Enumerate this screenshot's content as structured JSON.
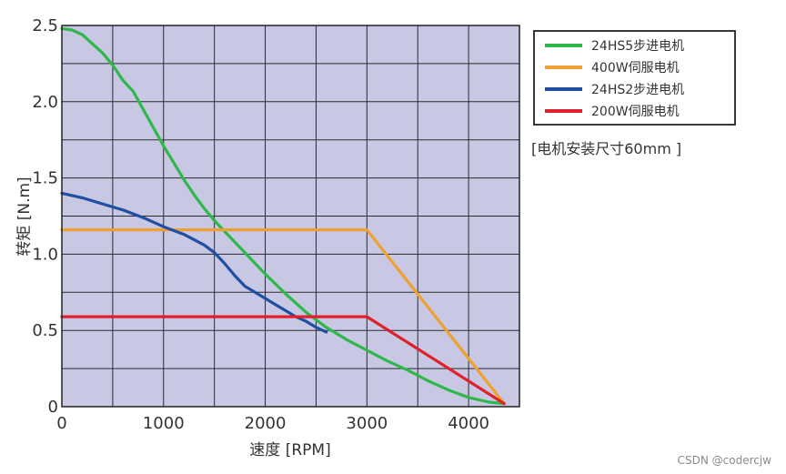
{
  "chart_data": {
    "type": "line",
    "xlabel": "速度 [RPM]",
    "ylabel": "转矩 [N.m]",
    "xlim": [
      0,
      4500
    ],
    "ylim": [
      0,
      2.5
    ],
    "x_ticks": [
      0,
      500,
      1000,
      1500,
      2000,
      2500,
      3000,
      3500,
      4000,
      4500
    ],
    "x_tick_labels": [
      "0",
      "",
      "1000",
      "",
      "2000",
      "",
      "3000",
      "",
      "4000",
      ""
    ],
    "y_ticks": [
      0,
      0.25,
      0.5,
      0.75,
      1.0,
      1.25,
      1.5,
      1.75,
      2.0,
      2.25,
      2.5
    ],
    "y_tick_labels": [
      "0",
      "",
      "0.5",
      "",
      "1.0",
      "",
      "1.5",
      "",
      "2.0",
      "",
      "2.5"
    ],
    "grid": true,
    "plot_background": "#c8c8e4",
    "legend_position": "top-right",
    "series": [
      {
        "name": "24HS5步进电机",
        "color": "#2fb84a",
        "points": [
          [
            0,
            2.48
          ],
          [
            100,
            2.47
          ],
          [
            200,
            2.44
          ],
          [
            300,
            2.38
          ],
          [
            400,
            2.32
          ],
          [
            500,
            2.24
          ],
          [
            600,
            2.14
          ],
          [
            700,
            2.07
          ],
          [
            800,
            1.95
          ],
          [
            900,
            1.83
          ],
          [
            1000,
            1.71
          ],
          [
            1100,
            1.6
          ],
          [
            1200,
            1.49
          ],
          [
            1300,
            1.39
          ],
          [
            1400,
            1.3
          ],
          [
            1500,
            1.22
          ],
          [
            1600,
            1.15
          ],
          [
            1700,
            1.08
          ],
          [
            1800,
            1.01
          ],
          [
            1900,
            0.94
          ],
          [
            2000,
            0.87
          ],
          [
            2200,
            0.74
          ],
          [
            2400,
            0.62
          ],
          [
            2600,
            0.52
          ],
          [
            2800,
            0.44
          ],
          [
            3000,
            0.37
          ],
          [
            3200,
            0.3
          ],
          [
            3400,
            0.24
          ],
          [
            3600,
            0.17
          ],
          [
            3800,
            0.11
          ],
          [
            4000,
            0.06
          ],
          [
            4200,
            0.03
          ],
          [
            4350,
            0.02
          ]
        ]
      },
      {
        "name": "400W伺服电机",
        "color": "#f0a030",
        "points": [
          [
            0,
            1.16
          ],
          [
            3000,
            1.16
          ],
          [
            4350,
            0.02
          ]
        ]
      },
      {
        "name": "24HS2步进电机",
        "color": "#1f4fa0",
        "points": [
          [
            0,
            1.4
          ],
          [
            200,
            1.37
          ],
          [
            400,
            1.33
          ],
          [
            600,
            1.29
          ],
          [
            800,
            1.24
          ],
          [
            1000,
            1.18
          ],
          [
            1200,
            1.13
          ],
          [
            1400,
            1.06
          ],
          [
            1500,
            1.01
          ],
          [
            1600,
            0.94
          ],
          [
            1700,
            0.86
          ],
          [
            1800,
            0.79
          ],
          [
            1900,
            0.75
          ],
          [
            2000,
            0.71
          ],
          [
            2100,
            0.67
          ],
          [
            2200,
            0.63
          ],
          [
            2300,
            0.59
          ],
          [
            2400,
            0.56
          ],
          [
            2500,
            0.52
          ],
          [
            2600,
            0.49
          ]
        ]
      },
      {
        "name": "200W伺服电机",
        "color": "#e0202a",
        "points": [
          [
            0,
            0.59
          ],
          [
            3000,
            0.59
          ],
          [
            4350,
            0.02
          ]
        ]
      }
    ],
    "annotations": [
      "[电机安装尺寸60mm ]"
    ]
  },
  "watermark": "CSDN @codercjw"
}
